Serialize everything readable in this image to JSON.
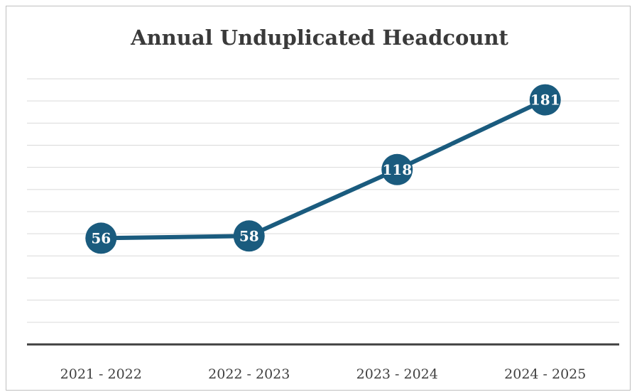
{
  "chart_data": {
    "type": "line",
    "title": "Annual Unduplicated Headcount",
    "categories": [
      "2021 - 2022",
      "2022 - 2023",
      "2023 - 2024",
      "2024 - 2025"
    ],
    "series": [
      {
        "values": [
          56,
          58,
          118,
          181
        ]
      }
    ],
    "ylim": [
      -40,
      200
    ],
    "grid": true,
    "legend": "none",
    "colors": {
      "line": "#1a5b7e",
      "marker": "#1a5b7e",
      "label_text": "#ffffff",
      "grid": "#d9d9d9",
      "axis": "#404040"
    }
  }
}
